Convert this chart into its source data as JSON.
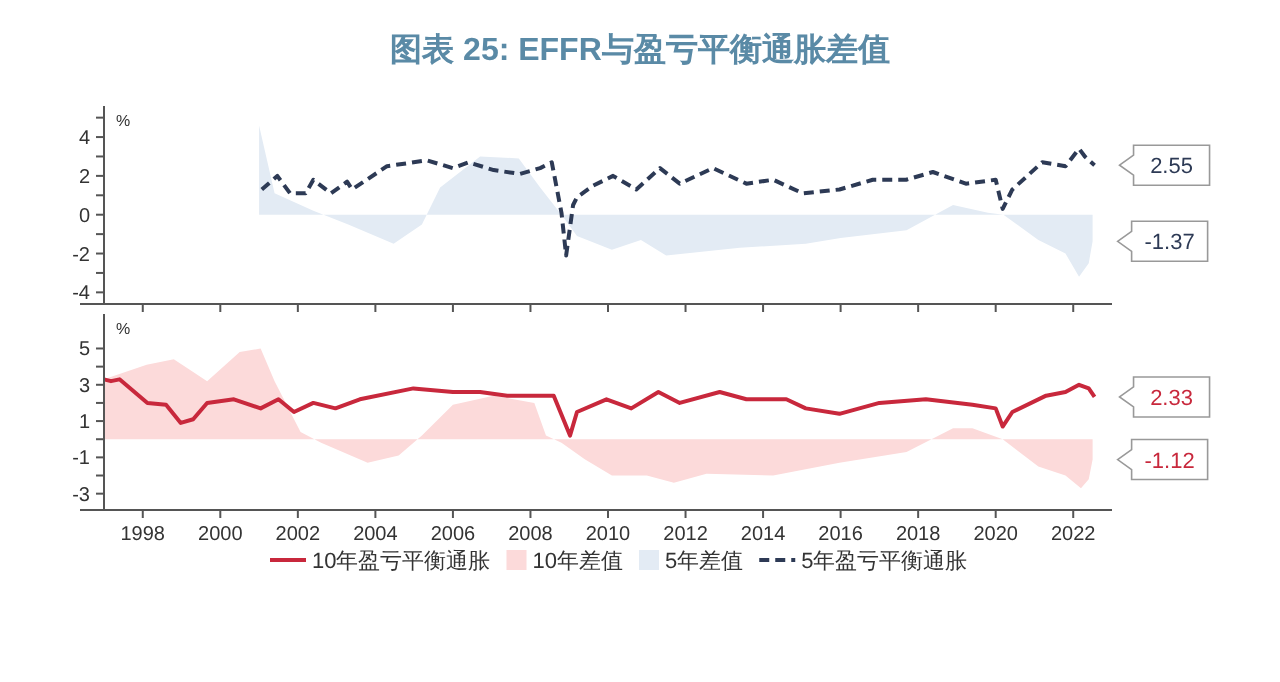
{
  "chart_data": [
    {
      "type": "line",
      "title": "图表 25: EFFR与盈亏平衡通胀差值",
      "ylabel": "%",
      "xlim": [
        1997,
        2023
      ],
      "xticks": [
        1998,
        2000,
        2002,
        2004,
        2006,
        2008,
        2010,
        2012,
        2014,
        2016,
        2018,
        2020,
        2022
      ],
      "tick_labels": "y",
      "ylim": [
        -4.6,
        5.6
      ],
      "yticks": [
        {
          "value": 5,
          "label": null
        },
        4,
        {
          "value": 3,
          "label": null
        },
        2,
        {
          "value": 1,
          "label": null
        },
        0,
        {
          "value": -1,
          "label": null
        },
        -2,
        {
          "value": -3,
          "label": null
        },
        -4
      ],
      "grid": false,
      "legend": "bottom",
      "series": [
        {
          "name": "5年盈亏平衡通胀",
          "line_style": "dashed",
          "color": "#2d3a55",
          "x": [
            2001.07,
            2001.47,
            2001.8,
            2002.2,
            2002.4,
            2002.85,
            2003.27,
            2003.4,
            2004.3,
            2005.33,
            2006.0,
            2006.4,
            2007.05,
            2007.73,
            2008.25,
            2008.55,
            2008.8,
            2008.92,
            2009.1,
            2009.2,
            2009.62,
            2010.13,
            2010.73,
            2011.34,
            2011.85,
            2012.71,
            2013.57,
            2014.26,
            2015.03,
            2015.97,
            2016.83,
            2017.69,
            2018.38,
            2019.23,
            2020.0,
            2020.18,
            2020.43,
            2021.2,
            2021.8,
            2022.15,
            2022.3,
            2022.55
          ],
          "values": [
            1.3,
            2.0,
            1.1,
            1.1,
            1.8,
            1.1,
            1.7,
            1.3,
            2.5,
            2.8,
            2.4,
            2.7,
            2.3,
            2.1,
            2.4,
            2.7,
            0.1,
            -2.1,
            0.5,
            0.9,
            1.5,
            2.0,
            1.3,
            2.4,
            1.6,
            2.4,
            1.6,
            1.8,
            1.1,
            1.3,
            1.8,
            1.8,
            2.2,
            1.6,
            1.8,
            0.3,
            1.3,
            2.7,
            2.5,
            3.4,
            3.0,
            2.55
          ]
        },
        {
          "name": "5年差值",
          "type": "area",
          "color": "#e3ebf4",
          "x": [
            2001.0,
            2001.4,
            2002.4,
            2003.3,
            2004.47,
            2005.2,
            2005.67,
            2006.7,
            2007.7,
            2008.25,
            2008.8,
            2009.2,
            2010.1,
            2010.85,
            2011.5,
            2013.4,
            2015.1,
            2016.0,
            2017.7,
            2018.9,
            2019.8,
            2020.2,
            2021.1,
            2021.8,
            2022.15,
            2022.4,
            2022.5
          ],
          "values": [
            4.6,
            1.1,
            0.2,
            -0.5,
            -1.5,
            -0.5,
            1.4,
            3.0,
            2.9,
            1.4,
            0,
            -1.1,
            -1.8,
            -1.3,
            -2.1,
            -1.7,
            -1.5,
            -1.2,
            -0.8,
            0.5,
            0.1,
            0,
            -1.3,
            -2.0,
            -3.2,
            -2.5,
            -1.37
          ]
        }
      ],
      "annotations": [
        "2.55",
        "-1.37"
      ]
    },
    {
      "type": "line",
      "ylabel": "%",
      "xlim": [
        1997,
        2023
      ],
      "xticks": [
        1998,
        2000,
        2002,
        2004,
        2006,
        2008,
        2010,
        2012,
        2014,
        2016,
        2018,
        2020,
        2022
      ],
      "ylim": [
        -3.9,
        6.9
      ],
      "yticks": [
        5,
        {
          "value": 4,
          "label": null
        },
        3,
        {
          "value": 2,
          "label": null
        },
        1,
        {
          "value": 0,
          "label": null
        },
        -1,
        {
          "value": -2,
          "label": null
        },
        -3
      ],
      "grid": false,
      "legend": "bottom",
      "series": [
        {
          "name": "10年盈亏平衡通胀",
          "line_style": "solid",
          "color": "#c8283c",
          "x": [
            1997.0,
            1997.18,
            1997.4,
            1998.12,
            1998.6,
            1998.98,
            1999.3,
            1999.66,
            2000.35,
            2001.04,
            2001.5,
            2001.9,
            2002.4,
            2002.97,
            2003.6,
            2004.98,
            2006.0,
            2006.7,
            2007.4,
            2008.25,
            2008.6,
            2009.02,
            2009.2,
            2009.96,
            2010.6,
            2011.3,
            2011.85,
            2012.88,
            2013.57,
            2014.6,
            2015.1,
            2015.97,
            2017.0,
            2018.2,
            2019.4,
            2020.0,
            2020.18,
            2020.43,
            2021.3,
            2021.8,
            2022.15,
            2022.4,
            2022.55
          ],
          "values": [
            3.3,
            3.2,
            3.3,
            2.0,
            1.9,
            0.9,
            1.1,
            2.0,
            2.2,
            1.7,
            2.2,
            1.5,
            2.0,
            1.7,
            2.2,
            2.8,
            2.6,
            2.6,
            2.4,
            2.4,
            2.4,
            0.2,
            1.5,
            2.2,
            1.7,
            2.6,
            2.0,
            2.6,
            2.2,
            2.2,
            1.7,
            1.4,
            2.0,
            2.2,
            1.9,
            1.7,
            0.7,
            1.5,
            2.4,
            2.6,
            3.0,
            2.8,
            2.33
          ]
        },
        {
          "name": "10年差值",
          "type": "area",
          "color": "#fcdada",
          "x": [
            1997.0,
            1998.1,
            1998.8,
            1999.3,
            1999.66,
            2000.5,
            2001.04,
            2001.4,
            2002.07,
            2002.6,
            2003.8,
            2004.6,
            2005.2,
            2006.0,
            2007.05,
            2008.1,
            2008.4,
            2008.8,
            2009.4,
            2010.1,
            2011.0,
            2011.7,
            2012.54,
            2014.26,
            2015.97,
            2017.7,
            2018.9,
            2019.4,
            2020.18,
            2021.1,
            2021.8,
            2022.2,
            2022.4,
            2022.5
          ],
          "values": [
            3.3,
            4.1,
            4.4,
            3.7,
            3.2,
            4.8,
            5.0,
            3.2,
            0.4,
            -0.2,
            -1.3,
            -0.9,
            0.2,
            1.9,
            2.4,
            2.0,
            0.2,
            -0.2,
            -1.1,
            -2.0,
            -2.0,
            -2.4,
            -1.9,
            -2.0,
            -1.3,
            -0.7,
            0.6,
            0.6,
            0,
            -1.5,
            -2.0,
            -2.7,
            -2.2,
            -1.12
          ]
        }
      ],
      "annotations": [
        "2.33",
        "-1.12"
      ]
    }
  ]
}
